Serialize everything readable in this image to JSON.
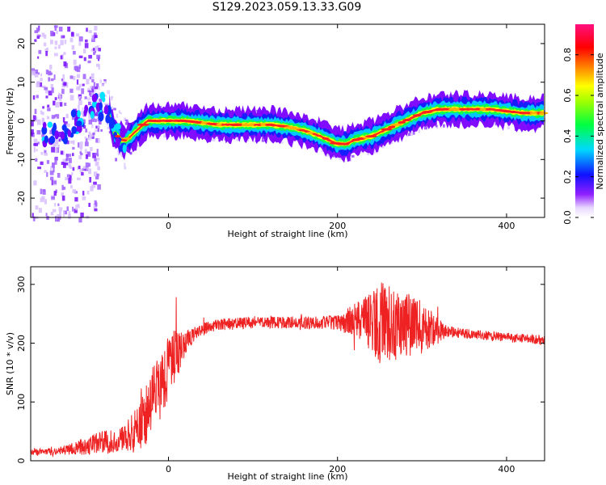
{
  "title": "S129.2023.059.13.33.G09",
  "colors": {
    "snr_line": "#ee2222",
    "track_core": "#e02020",
    "background": "#ffffff"
  },
  "chart_data": [
    {
      "type": "heatmap",
      "xlabel": "Height of straight line (km)",
      "ylabel": "Frequency (Hz)",
      "xlim": [
        -163,
        445
      ],
      "ylim": [
        -25,
        25
      ],
      "x_ticks": [
        0,
        200,
        400
      ],
      "y_ticks": [
        -20,
        -10,
        0,
        10,
        20
      ],
      "colorbar": {
        "label": "Normalized spectral amplitude",
        "range": [
          0.0,
          0.95
        ],
        "ticks": [
          "0.0",
          "0.2",
          "0.4",
          "0.6",
          "0.8"
        ],
        "colormap": "rainbow (purple→blue→cyan→green→yellow→orange→red→magenta)"
      },
      "ridge_frequency_hz": {
        "x": [
          -160,
          -145,
          -130,
          -115,
          -100,
          -90,
          -80,
          -75,
          -70,
          -65,
          -60,
          -55,
          -50,
          -45,
          -40,
          -35,
          -30,
          -25,
          -20,
          -10,
          0,
          20,
          40,
          60,
          80,
          100,
          120,
          140,
          160,
          180,
          190,
          200,
          210,
          220,
          240,
          260,
          280,
          300,
          320,
          340,
          360,
          380,
          400,
          420,
          445
        ],
        "y": [
          -4,
          -4,
          -3,
          -1,
          1,
          3,
          4,
          5,
          2,
          -3,
          -4,
          -5,
          -5,
          -4,
          -3,
          -2,
          -1,
          0,
          0,
          0,
          0,
          0,
          -0.5,
          -1,
          -1,
          -1,
          -1,
          -1.5,
          -2.5,
          -4,
          -5,
          -6,
          -6,
          -5,
          -4,
          -2,
          0,
          2,
          3,
          3,
          3,
          3,
          2.5,
          2,
          2
        ]
      }
    },
    {
      "type": "line",
      "xlabel": "Height of straight line (km)",
      "ylabel": "SNR (10 * v/v)",
      "xlim": [
        -163,
        445
      ],
      "ylim": [
        0,
        330
      ],
      "x_ticks": [
        0,
        200,
        400
      ],
      "y_ticks": [
        0,
        100,
        200,
        300
      ],
      "series": [
        {
          "x": [
            -163,
            -140,
            -120,
            -100,
            -80,
            -60,
            -50,
            -40,
            -30,
            -20,
            -10,
            0,
            10,
            20,
            30,
            40,
            60,
            80,
            100,
            150,
            200,
            230,
            250,
            270,
            290,
            310,
            330,
            360,
            400,
            445
          ],
          "y": [
            15,
            15,
            18,
            25,
            30,
            35,
            40,
            50,
            70,
            100,
            130,
            160,
            180,
            200,
            215,
            225,
            232,
            233,
            235,
            235,
            235,
            238,
            235,
            232,
            228,
            225,
            220,
            215,
            210,
            205
          ],
          "noise": [
            5,
            6,
            8,
            15,
            20,
            20,
            25,
            35,
            50,
            60,
            60,
            55,
            45,
            20,
            12,
            10,
            10,
            10,
            10,
            10,
            12,
            40,
            70,
            60,
            55,
            35,
            10,
            8,
            8,
            8
          ]
        }
      ]
    }
  ]
}
